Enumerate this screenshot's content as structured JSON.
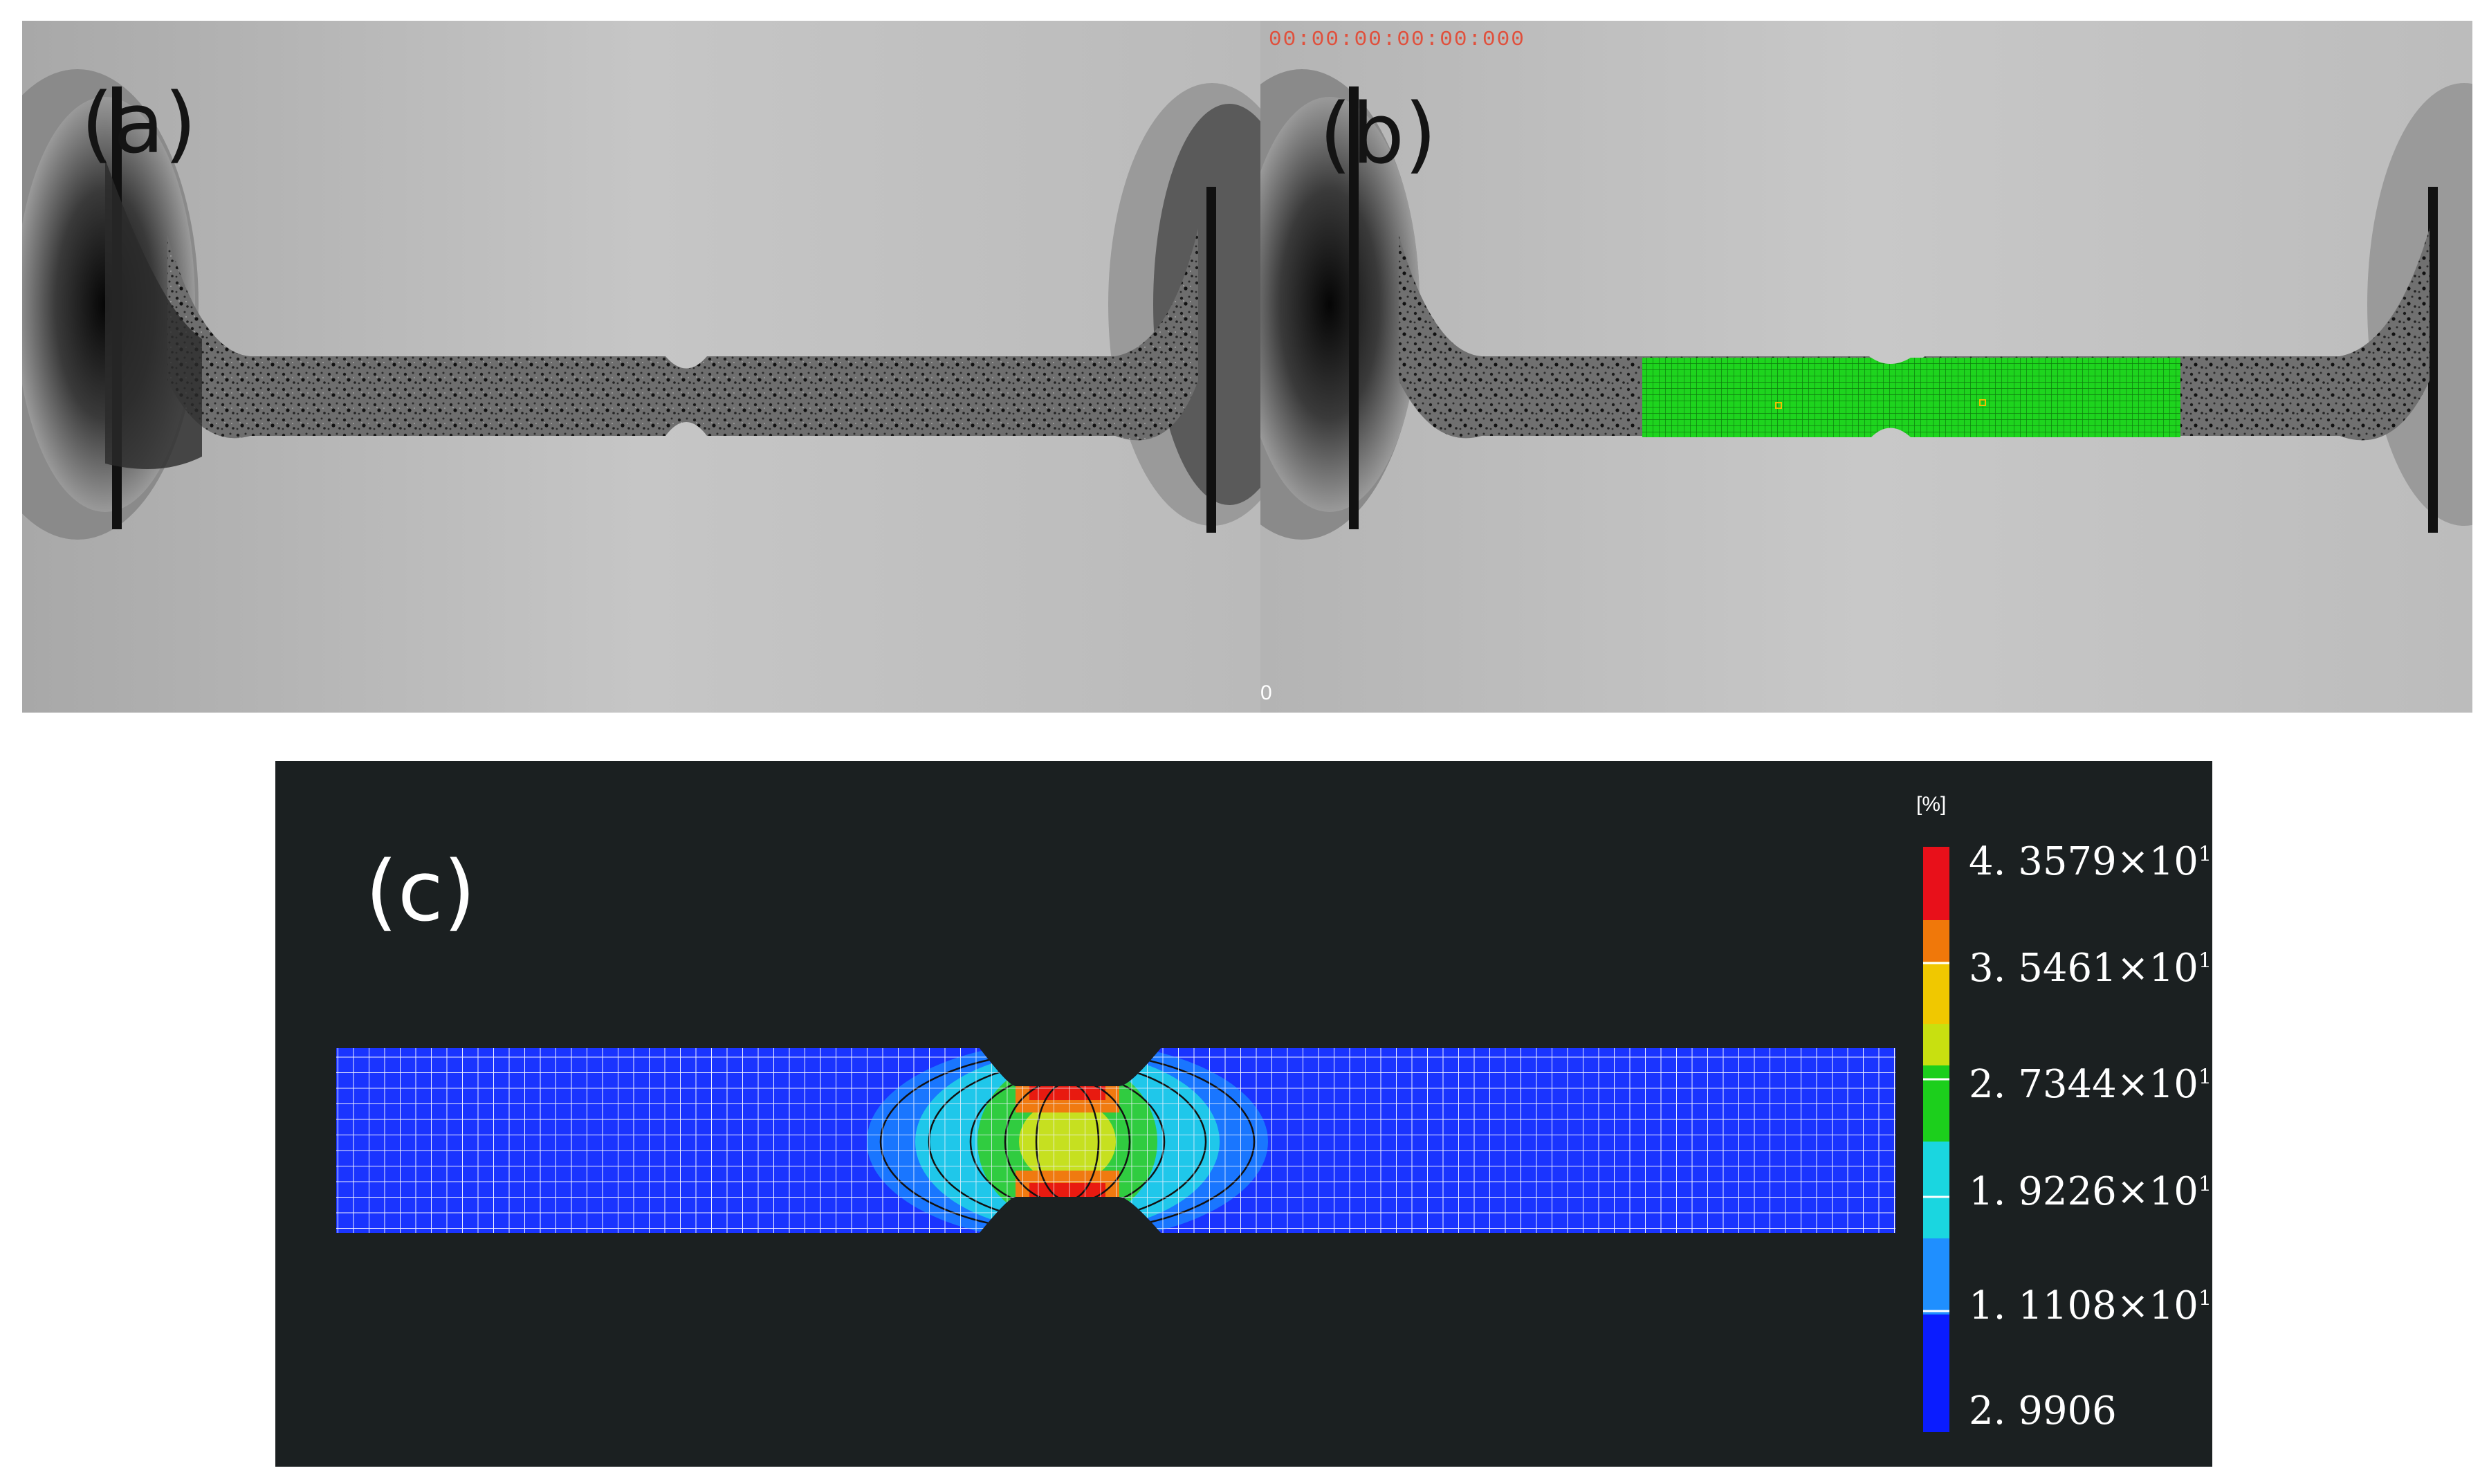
{
  "panels": {
    "a": {
      "label": "(a)"
    },
    "b": {
      "label": "(b)",
      "timestamp": "00:00:00:00:00:000",
      "frame_number": "0"
    },
    "c": {
      "label": "(c)"
    }
  },
  "colorbar": {
    "unit": "[%]",
    "ticks": [
      {
        "text": "4. 3579×10",
        "sup": "1"
      },
      {
        "text": "3. 5461×10",
        "sup": "1"
      },
      {
        "text": "2. 7344×10",
        "sup": "1"
      },
      {
        "text": "1. 9226×10",
        "sup": "1"
      },
      {
        "text": "1. 1108×10",
        "sup": "1"
      },
      {
        "text": "2. 9906",
        "sup": ""
      }
    ],
    "colors": [
      "#e8101a",
      "#f08c00",
      "#f0e600",
      "#1ccf1c",
      "#1ad6e0",
      "#1f8fff",
      "#0a1cff"
    ]
  },
  "colors": {
    "mesh_green": "#22dd22",
    "strain_low": "#1836ff",
    "background_dark": "#1b2021"
  }
}
